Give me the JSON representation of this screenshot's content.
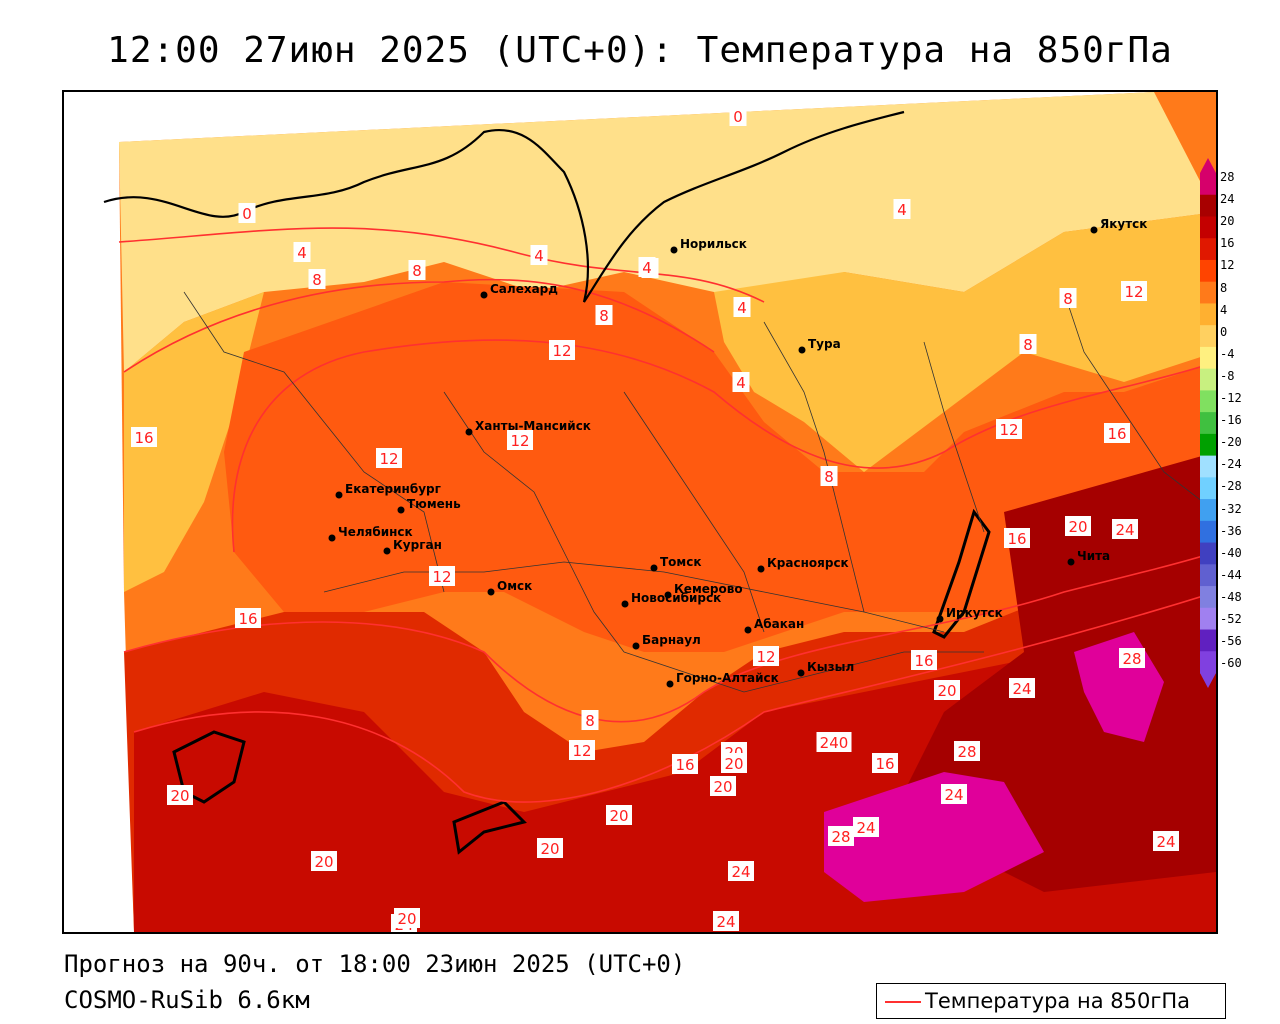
{
  "title": "12:00 27июн 2025 (UTC+0): Температура на 850гПа",
  "footer": {
    "forecast": "Прогноз на 90ч. от 18:00 23июн 2025 (UTC+0)",
    "model": "COSMO-RuSib 6.6км"
  },
  "legend": {
    "label": "Температура на 850гПа",
    "color": "#ff3030"
  },
  "colorbar": {
    "ticks": [
      "28",
      "24",
      "20",
      "16",
      "12",
      "8",
      "4",
      "0",
      "-4",
      "-8",
      "-12",
      "-16",
      "-20",
      "-24",
      "-28",
      "-32",
      "-36",
      "-40",
      "-44",
      "-48",
      "-52",
      "-56",
      "-60"
    ],
    "colors": [
      "#d6006b",
      "#a80000",
      "#c40000",
      "#e01800",
      "#ff4400",
      "#ff7a1a",
      "#ffb030",
      "#ffd060",
      "#fff080",
      "#c8f080",
      "#80e060",
      "#40c040",
      "#00a000",
      "#a0e0ff",
      "#70d0ff",
      "#40a0f0",
      "#3070e0",
      "#4040c0",
      "#6060d0",
      "#8080e0",
      "#a080f0",
      "#6020c0",
      "#8040e0"
    ]
  },
  "cities": [
    {
      "name": "Норильск"
    },
    {
      "name": "Якутск"
    },
    {
      "name": "Салехард"
    },
    {
      "name": "Тура"
    },
    {
      "name": "Ханты-Мансийск"
    },
    {
      "name": "Екатеринбург"
    },
    {
      "name": "Тюмень"
    },
    {
      "name": "Челябинск"
    },
    {
      "name": "Курган"
    },
    {
      "name": "Омск"
    },
    {
      "name": "Новосибирск"
    },
    {
      "name": "Томск"
    },
    {
      "name": "Красноярск"
    },
    {
      "name": "Кемерово"
    },
    {
      "name": "Абакан"
    },
    {
      "name": "Барнаул"
    },
    {
      "name": "Горно-Алтайск"
    },
    {
      "name": "Кызыл"
    },
    {
      "name": "Иркутск"
    },
    {
      "name": "Чита"
    }
  ],
  "contour_labels": [
    "0",
    "0",
    "4",
    "4",
    "4",
    "8",
    "8",
    "4",
    "4",
    "4",
    "8",
    "12",
    "12",
    "12",
    "12",
    "8",
    "8",
    "4",
    "8",
    "12",
    "16",
    "16",
    "20",
    "24",
    "12",
    "12",
    "16",
    "16",
    "16",
    "20",
    "24",
    "28",
    "20",
    "240",
    "16",
    "28",
    "24",
    "24",
    "28",
    "24",
    "20",
    "20",
    "20",
    "24",
    "20",
    "24",
    "20",
    "20",
    "24",
    "16",
    "20",
    "12",
    "8"
  ]
}
